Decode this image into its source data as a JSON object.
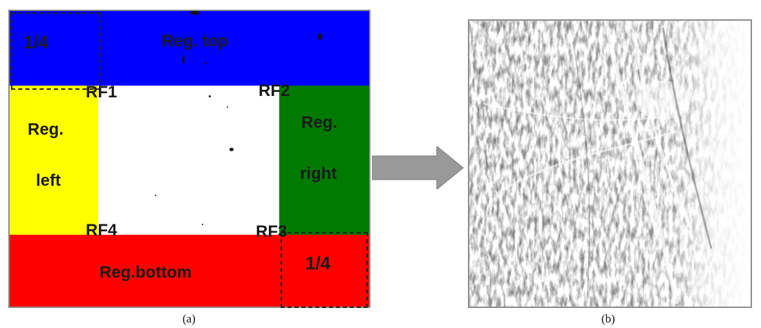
{
  "panel_a": {
    "regions": {
      "top": {
        "label": "Reg. top",
        "color": "#0000ff"
      },
      "left": {
        "label_line1": "Reg.",
        "label_line2": "left",
        "color": "#ffff00"
      },
      "right": {
        "label_line1": "Reg.",
        "label_line2": "right",
        "color": "#007a00"
      },
      "bottom": {
        "label": "Reg.bottom",
        "color": "#ff0000"
      }
    },
    "reference_points": [
      "RF1",
      "RF2",
      "RF3",
      "RF4"
    ],
    "quarter_label_top_left": "1/4",
    "quarter_label_bottom_right": "1/4",
    "caption": "(a)"
  },
  "arrow": {
    "color": "#999999"
  },
  "panel_b": {
    "image_description_icon": "palmprint-image",
    "caption": "(b)"
  }
}
